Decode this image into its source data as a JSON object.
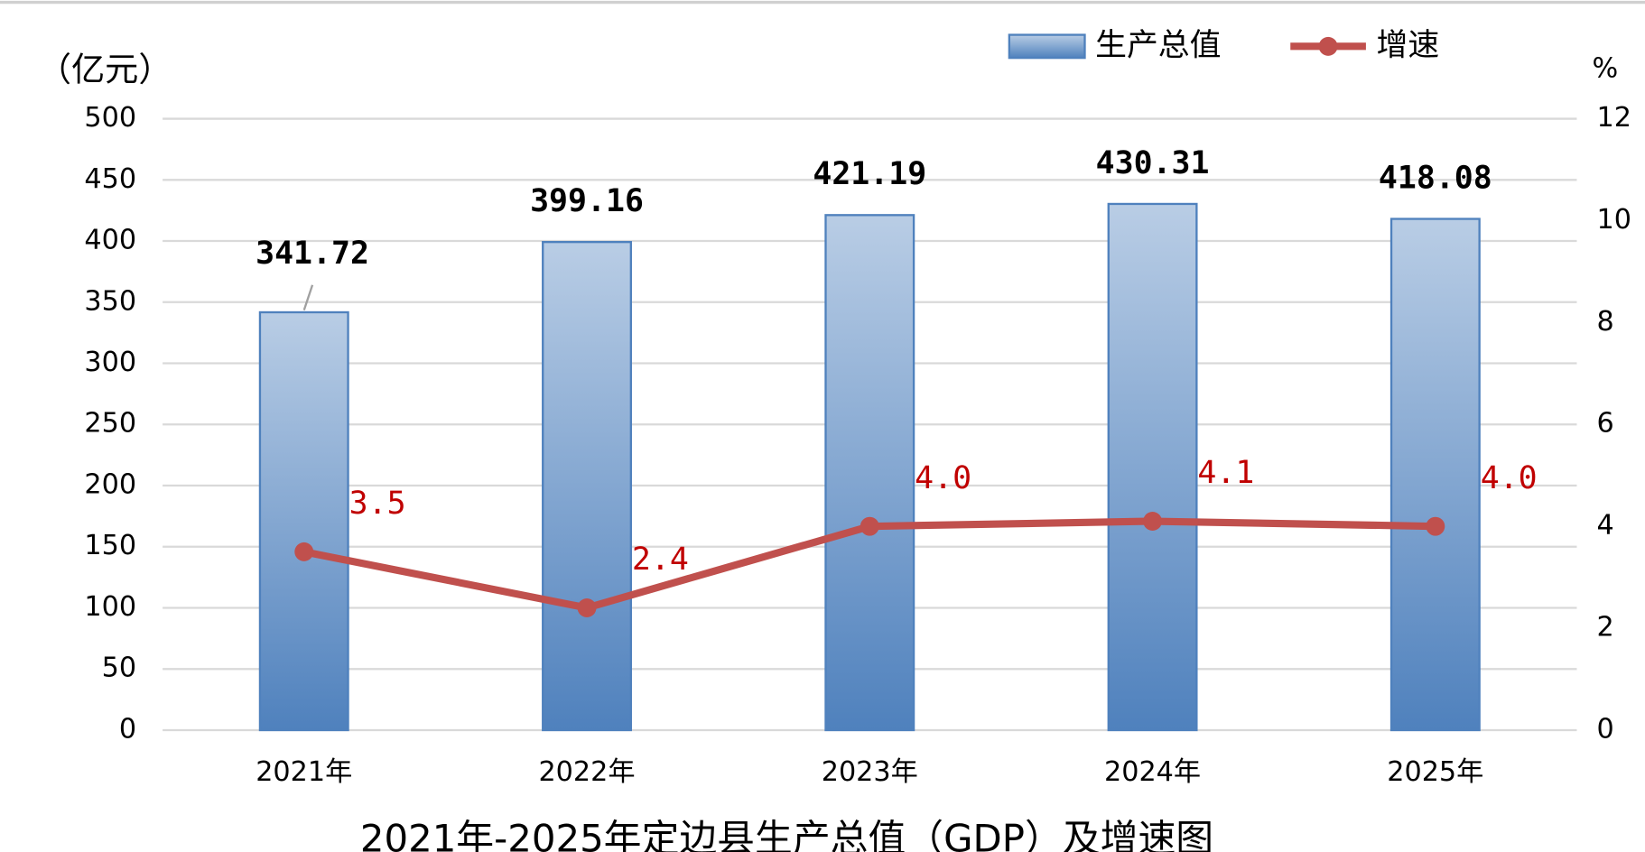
{
  "chart_data": {
    "type": "bar",
    "title": "2021年-2025年定边县生产总值（GDP）及增速图",
    "y_label": "（亿元）",
    "y2_label": "%",
    "categories": [
      "2021年",
      "2022年",
      "2023年",
      "2024年",
      "2025年"
    ],
    "series": [
      {
        "name": "生产总值",
        "type": "bar",
        "color": "#4f81bd",
        "values": [
          341.72,
          399.16,
          421.19,
          430.31,
          418.08
        ]
      },
      {
        "name": "增速",
        "type": "line",
        "axis": "y2",
        "color": "#c0504d",
        "values": [
          3.5,
          2.4,
          4.0,
          4.1,
          4.0
        ],
        "value_labels": [
          "3.5",
          "2.4",
          "4.0",
          "4.1",
          "4.0"
        ]
      }
    ],
    "ylim": [
      0,
      500
    ],
    "yticks": [
      0,
      50,
      100,
      150,
      200,
      250,
      300,
      350,
      400,
      450,
      500
    ],
    "y2lim": [
      0,
      12
    ],
    "y2ticks": [
      0,
      2,
      4,
      6,
      8,
      10,
      12
    ],
    "grid": true
  }
}
